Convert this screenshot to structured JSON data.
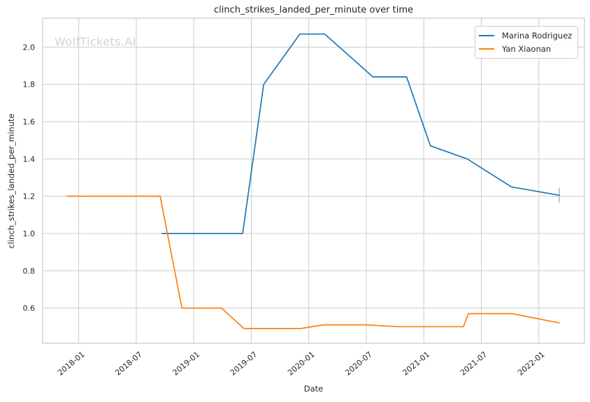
{
  "watermark": "WolfTickets.AI",
  "chart_data": {
    "type": "line",
    "title": "clinch_strikes_landed_per_minute over time",
    "xlabel": "Date",
    "ylabel": "clinch_strikes_landed_per_minute",
    "grid": true,
    "legend_position": "upper right",
    "x_tick_labels": [
      "2018-01",
      "2018-07",
      "2019-01",
      "2019-07",
      "2020-01",
      "2020-07",
      "2021-01",
      "2021-07",
      "2022-01"
    ],
    "y_ticks": [
      0.6,
      0.8,
      1.0,
      1.2,
      1.4,
      1.6,
      1.8,
      2.0
    ],
    "xlim_dates": [
      "2017-09-08",
      "2022-05-24"
    ],
    "ylim": [
      0.411,
      2.155
    ],
    "series": [
      {
        "name": "Marina Rodriguez",
        "color": "#1f77b4",
        "points": [
          [
            "2018-09-22",
            1.0
          ],
          [
            "2019-06-04",
            1.0
          ],
          [
            "2019-08-10",
            1.8
          ],
          [
            "2019-12-03",
            2.07
          ],
          [
            "2020-02-21",
            2.07
          ],
          [
            "2020-07-22",
            1.84
          ],
          [
            "2020-11-07",
            1.84
          ],
          [
            "2021-01-22",
            1.47
          ],
          [
            "2021-05-17",
            1.4
          ],
          [
            "2021-10-05",
            1.25
          ],
          [
            "2022-03-05",
            1.205
          ]
        ],
        "last_point_error": 0.04
      },
      {
        "name": "Yan Xiaonan",
        "color": "#ff7f0e",
        "points": [
          [
            "2017-11-25",
            1.2
          ],
          [
            "2018-09-16",
            1.2
          ],
          [
            "2018-11-24",
            0.6
          ],
          [
            "2019-03-28",
            0.6
          ],
          [
            "2019-06-08",
            0.49
          ],
          [
            "2019-12-07",
            0.49
          ],
          [
            "2020-02-17",
            0.51
          ],
          [
            "2020-06-29",
            0.51
          ],
          [
            "2020-10-12",
            0.5
          ],
          [
            "2021-05-05",
            0.5
          ],
          [
            "2021-05-21",
            0.57
          ],
          [
            "2021-10-08",
            0.57
          ],
          [
            "2022-03-05",
            0.52
          ]
        ]
      }
    ]
  }
}
